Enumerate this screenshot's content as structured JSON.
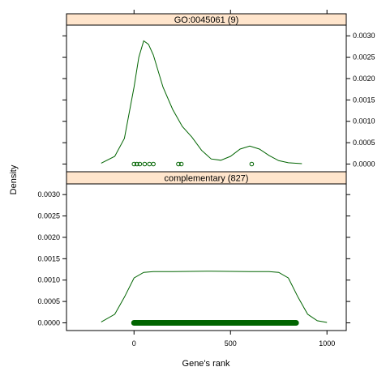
{
  "chart_data": {
    "type": "density",
    "xlabel": "Gene's rank",
    "ylabel": "Density",
    "xlim": [
      -350,
      1100
    ],
    "x_ticks": [
      0,
      500,
      1000
    ],
    "y_ticks": [
      0.0,
      0.0005,
      0.001,
      0.0015,
      0.002,
      0.0025,
      0.003
    ],
    "y_tick_labels": [
      "0.0000",
      "0.0005",
      "0.0010",
      "0.0015",
      "0.0020",
      "0.0025",
      "0.0030"
    ],
    "ylim": [
      -0.00018,
      0.00325
    ],
    "line_color": "#006400",
    "strip_color": "#ffe5cc",
    "panels": [
      {
        "strip_label": "GO:0045061  (9)",
        "y_axis_side": "right",
        "density": {
          "x": [
            -170,
            -100,
            -50,
            0,
            25,
            50,
            75,
            100,
            150,
            200,
            250,
            300,
            350,
            400,
            450,
            500,
            550,
            600,
            650,
            700,
            750,
            800,
            870
          ],
          "y": [
            2e-05,
            0.00018,
            0.0006,
            0.0018,
            0.0025,
            0.00288,
            0.0028,
            0.00255,
            0.0018,
            0.00128,
            0.00088,
            0.00063,
            0.00032,
            0.00012,
            9e-05,
            0.00018,
            0.00035,
            0.00042,
            0.00035,
            0.0002,
            8e-05,
            3e-05,
            1e-05
          ]
        },
        "points": [
          0,
          15,
          30,
          55,
          80,
          100,
          230,
          245,
          610
        ]
      },
      {
        "strip_label": "complementary  (827)",
        "y_axis_side": "left",
        "density": {
          "x": [
            -170,
            -100,
            -50,
            0,
            50,
            100,
            200,
            400,
            600,
            700,
            750,
            800,
            850,
            900,
            950,
            1000
          ],
          "y": [
            2e-05,
            0.0002,
            0.0006,
            0.00105,
            0.00118,
            0.0012,
            0.0012,
            0.00121,
            0.0012,
            0.0012,
            0.00118,
            0.00105,
            0.0006,
            0.0002,
            5e-05,
            1e-05
          ]
        },
        "points_range": [
          0,
          840
        ]
      }
    ]
  }
}
